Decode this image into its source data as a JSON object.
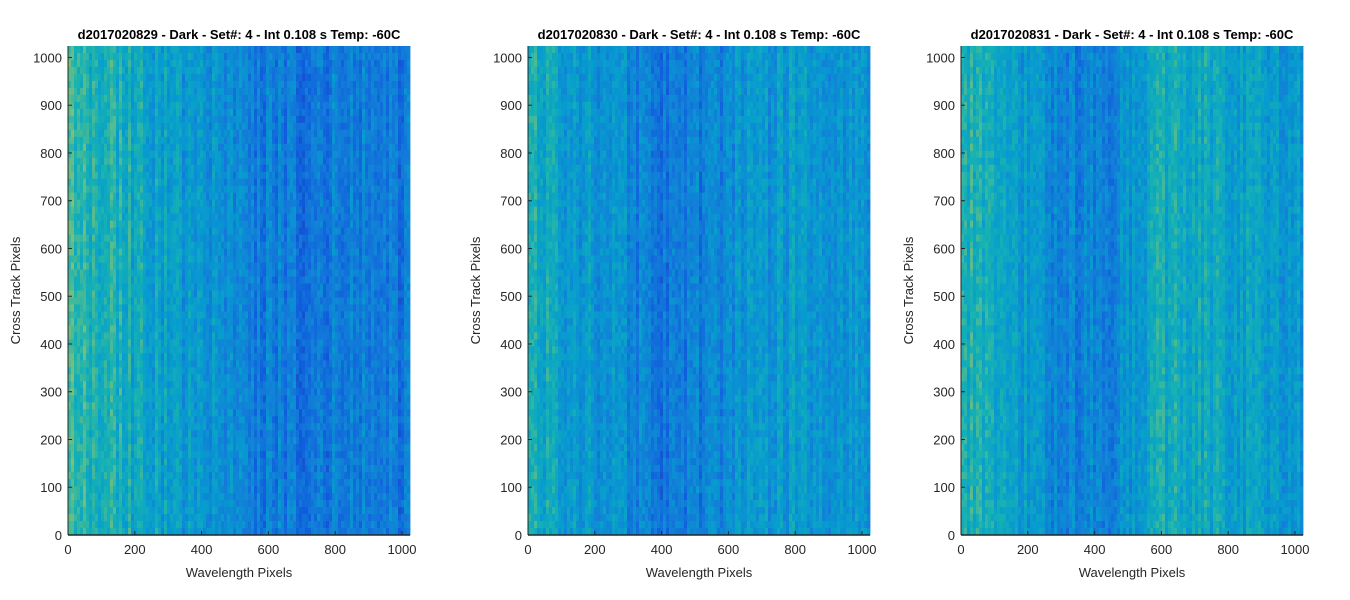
{
  "chart_data": [
    {
      "type": "heatmap",
      "title": "d2017020829 - Dark - Set#: 4 - Int 0.108 s Temp: -60C",
      "xlabel": "Wavelength Pixels",
      "ylabel": "Cross Track Pixels",
      "xlim": [
        0,
        1024
      ],
      "ylim": [
        0,
        1024
      ],
      "xticks": [
        0,
        200,
        400,
        600,
        800,
        1000
      ],
      "yticks": [
        0,
        100,
        200,
        300,
        400,
        500,
        600,
        700,
        800,
        900,
        1000
      ],
      "colormap": "parula",
      "column_intensity": [
        [
          0,
          0.66
        ],
        [
          150,
          0.58
        ],
        [
          300,
          0.45
        ],
        [
          450,
          0.38
        ],
        [
          560,
          0.3
        ],
        [
          700,
          0.28
        ],
        [
          850,
          0.3
        ],
        [
          1024,
          0.28
        ]
      ]
    },
    {
      "type": "heatmap",
      "title": "d2017020830 - Dark - Set#: 4 - Int 0.108 s Temp: -60C",
      "xlabel": "Wavelength Pixels",
      "ylabel": "Cross Track Pixels",
      "xlim": [
        0,
        1024
      ],
      "ylim": [
        0,
        1024
      ],
      "xticks": [
        0,
        200,
        400,
        600,
        800,
        1000
      ],
      "yticks": [
        0,
        100,
        200,
        300,
        400,
        500,
        600,
        700,
        800,
        900,
        1000
      ],
      "colormap": "parula",
      "column_intensity": [
        [
          0,
          0.55
        ],
        [
          150,
          0.45
        ],
        [
          300,
          0.35
        ],
        [
          420,
          0.28
        ],
        [
          520,
          0.32
        ],
        [
          650,
          0.4
        ],
        [
          800,
          0.46
        ],
        [
          1024,
          0.42
        ]
      ]
    },
    {
      "type": "heatmap",
      "title": "d2017020831 - Dark - Set#: 4 - Int 0.108 s Temp: -60C",
      "xlabel": "Wavelength Pixels",
      "ylabel": "Cross Track Pixels",
      "xlim": [
        0,
        1024
      ],
      "ylim": [
        0,
        1024
      ],
      "xticks": [
        0,
        200,
        400,
        600,
        800,
        1000
      ],
      "yticks": [
        0,
        100,
        200,
        300,
        400,
        500,
        600,
        700,
        800,
        900,
        1000
      ],
      "colormap": "parula",
      "column_intensity": [
        [
          0,
          0.6
        ],
        [
          150,
          0.5
        ],
        [
          300,
          0.33
        ],
        [
          450,
          0.3
        ],
        [
          560,
          0.52
        ],
        [
          700,
          0.55
        ],
        [
          850,
          0.48
        ],
        [
          1024,
          0.46
        ]
      ]
    }
  ]
}
